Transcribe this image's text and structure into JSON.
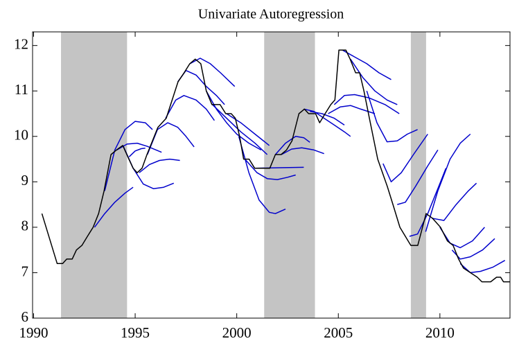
{
  "chart_data": {
    "type": "line",
    "title": "Univariate Autoregression",
    "xlim": [
      1989.95,
      2013.45
    ],
    "ylim": [
      6,
      12.3
    ],
    "xticks": [
      1990,
      1995,
      2000,
      2005,
      2010
    ],
    "yticks": [
      6,
      7,
      8,
      9,
      10,
      11,
      12
    ],
    "grid": false,
    "shaded_regions": [
      [
        1991.35,
        1994.6
      ],
      [
        2001.35,
        2003.85
      ],
      [
        2008.57,
        2009.32
      ]
    ],
    "shade_color": "#c4c4c4",
    "series": [
      {
        "color": "#000000",
        "x": [
          1990.41,
          1991.16,
          1991.43,
          1991.63,
          1991.9,
          1992.11,
          1992.38,
          1992.65,
          1992.93,
          1993.2,
          1993.47,
          1993.81,
          1994.08,
          1994.39,
          1994.69,
          1994.9,
          1995.1,
          1995.34,
          1995.58,
          1996.12,
          1996.53,
          1997.11,
          1997.41,
          1997.69,
          1997.96,
          1998.23,
          1998.5,
          1998.78,
          1999.18,
          1999.46,
          1999.73,
          1999.93,
          2000.14,
          2000.34,
          2000.61,
          2000.88,
          2001.29,
          2001.63,
          2001.9,
          2002.18,
          2002.45,
          2002.72,
          2003.06,
          2003.33,
          2003.54,
          2003.88,
          2004.08,
          2004.35,
          2004.63,
          2004.83,
          2005.03,
          2005.37,
          2005.58,
          2005.85,
          2006.05,
          2006.26,
          2006.53,
          2006.94,
          2007.41,
          2007.69,
          2008.03,
          2008.3,
          2008.57,
          2008.91,
          2009.32,
          2009.63,
          2010.03,
          2010.37,
          2010.65,
          2010.92,
          2011.16,
          2011.5,
          2011.84,
          2012.07,
          2012.5,
          2012.79,
          2012.99,
          2013.13,
          2013.45
        ],
        "values": [
          8.3,
          7.2,
          7.2,
          7.3,
          7.3,
          7.5,
          7.6,
          7.8,
          8.0,
          8.3,
          8.8,
          9.6,
          9.7,
          9.8,
          9.5,
          9.3,
          9.2,
          9.3,
          9.6,
          10.2,
          10.4,
          11.2,
          11.4,
          11.6,
          11.7,
          11.6,
          11.0,
          10.7,
          10.7,
          10.5,
          10.5,
          10.4,
          10.0,
          9.5,
          9.5,
          9.3,
          9.3,
          9.3,
          9.6,
          9.6,
          9.7,
          9.9,
          10.5,
          10.6,
          10.5,
          10.5,
          10.3,
          10.5,
          10.7,
          10.8,
          11.9,
          11.9,
          11.7,
          11.4,
          11.4,
          11.0,
          10.4,
          9.5,
          8.9,
          8.5,
          8.0,
          7.8,
          7.6,
          7.6,
          8.3,
          8.2,
          8.0,
          7.7,
          7.6,
          7.3,
          7.1,
          7.0,
          6.9,
          6.8,
          6.8,
          6.9,
          6.9,
          6.8,
          6.8
        ]
      },
      {
        "color": "#0000cc",
        "x": [
          1993.0,
          1993.5,
          1994.0,
          1994.5,
          1994.9
        ],
        "values": [
          8.0,
          8.3,
          8.55,
          8.75,
          8.88
        ]
      },
      {
        "color": "#0000cc",
        "x": [
          1993.5,
          1994.0,
          1994.5,
          1995.0,
          1995.5,
          1995.85
        ],
        "values": [
          8.8,
          9.7,
          10.15,
          10.33,
          10.3,
          10.15
        ]
      },
      {
        "color": "#0000cc",
        "x": [
          1994.4,
          1994.9,
          1995.4,
          1995.9,
          1996.4,
          1996.9
        ],
        "values": [
          9.8,
          9.3,
          8.95,
          8.85,
          8.88,
          8.97
        ]
      },
      {
        "color": "#0000cc",
        "x": [
          1994.1,
          1994.6,
          1995.1,
          1995.6,
          1996.3
        ],
        "values": [
          9.7,
          9.83,
          9.85,
          9.78,
          9.65
        ]
      },
      {
        "color": "#0000cc",
        "x": [
          1994.7,
          1995.0,
          1995.3,
          1995.5
        ],
        "values": [
          9.55,
          9.68,
          9.73,
          9.74
        ]
      },
      {
        "color": "#0000cc",
        "x": [
          1995.2,
          1995.7,
          1996.2,
          1996.7,
          1997.2
        ],
        "values": [
          9.2,
          9.38,
          9.47,
          9.5,
          9.47
        ]
      },
      {
        "color": "#0000cc",
        "x": [
          1995.6,
          1996.1,
          1996.6,
          1997.1,
          1997.5,
          1997.9
        ],
        "values": [
          9.6,
          10.15,
          10.3,
          10.2,
          10.0,
          9.77
        ]
      },
      {
        "color": "#0000cc",
        "x": [
          1996.5,
          1997.0,
          1997.4,
          1998.0,
          1998.5,
          1998.9
        ],
        "values": [
          10.4,
          10.8,
          10.9,
          10.8,
          10.6,
          10.35
        ]
      },
      {
        "color": "#0000cc",
        "x": [
          1997.1,
          1997.5,
          1998.0,
          1998.5,
          1999.0,
          1999.4
        ],
        "values": [
          11.2,
          11.45,
          11.35,
          11.1,
          10.9,
          10.7
        ]
      },
      {
        "color": "#0000cc",
        "x": [
          1997.7,
          1998.2,
          1998.7,
          1999.2,
          1999.9
        ],
        "values": [
          11.6,
          11.72,
          11.6,
          11.4,
          11.1
        ]
      },
      {
        "color": "#0000cc",
        "x": [
          1998.5,
          1999.0,
          1999.5,
          2000.0,
          2000.6,
          2001.2
        ],
        "values": [
          11.0,
          10.6,
          10.3,
          10.05,
          9.85,
          9.7
        ]
      },
      {
        "color": "#0000cc",
        "x": [
          1998.8,
          1999.5,
          2000.2,
          2000.9,
          2001.5
        ],
        "values": [
          10.7,
          10.4,
          10.1,
          9.85,
          9.6
        ]
      },
      {
        "color": "#0000cc",
        "x": [
          1999.5,
          2000.2,
          2000.9,
          2001.6
        ],
        "values": [
          10.5,
          10.3,
          10.05,
          9.8
        ]
      },
      {
        "color": "#0000cc",
        "x": [
          2000.1,
          2000.6,
          2001.1,
          2001.6,
          2001.9,
          2002.4
        ],
        "values": [
          10.0,
          9.2,
          8.6,
          8.33,
          8.3,
          8.4
        ]
      },
      {
        "color": "#0000cc",
        "x": [
          2000.4,
          2001.0,
          2001.5,
          2002.0,
          2002.5,
          2002.9
        ],
        "values": [
          9.5,
          9.2,
          9.07,
          9.05,
          9.1,
          9.15
        ]
      },
      {
        "color": "#0000cc",
        "x": [
          2000.9,
          2002.1,
          2003.3
        ],
        "values": [
          9.3,
          9.31,
          9.32
        ]
      },
      {
        "color": "#0000cc",
        "x": [
          2001.9,
          2002.4,
          2002.9,
          2003.3,
          2003.6
        ],
        "values": [
          9.6,
          9.85,
          10.0,
          9.97,
          9.87
        ]
      },
      {
        "color": "#0000cc",
        "x": [
          2002.2,
          2002.7,
          2003.2,
          2003.8,
          2004.3
        ],
        "values": [
          9.6,
          9.72,
          9.75,
          9.7,
          9.62
        ]
      },
      {
        "color": "#0000cc",
        "x": [
          2003.3,
          2003.8,
          2004.3,
          2004.8,
          2005.3,
          2005.6
        ],
        "values": [
          10.6,
          10.55,
          10.4,
          10.25,
          10.1,
          10.0
        ]
      },
      {
        "color": "#0000cc",
        "x": [
          2003.6,
          2004.2,
          2004.8,
          2005.3
        ],
        "values": [
          10.55,
          10.5,
          10.4,
          10.25
        ]
      },
      {
        "color": "#0000cc",
        "x": [
          2004.5,
          2005.1,
          2005.6,
          2006.1,
          2006.8
        ],
        "values": [
          10.5,
          10.65,
          10.68,
          10.6,
          10.5
        ]
      },
      {
        "color": "#0000cc",
        "x": [
          2004.8,
          2005.3,
          2005.8,
          2006.5,
          2007.3,
          2008.0
        ],
        "values": [
          10.7,
          10.9,
          10.92,
          10.85,
          10.7,
          10.5
        ]
      },
      {
        "color": "#0000cc",
        "x": [
          2005.2,
          2005.8,
          2006.4,
          2007.0,
          2007.6
        ],
        "values": [
          11.9,
          11.75,
          11.6,
          11.4,
          11.25
        ]
      },
      {
        "color": "#0000cc",
        "x": [
          2005.6,
          2006.2,
          2006.8,
          2007.4,
          2007.9
        ],
        "values": [
          11.7,
          11.3,
          11.0,
          10.8,
          10.7
        ]
      },
      {
        "color": "#0000cc",
        "x": [
          2006.4,
          2006.9,
          2007.4,
          2007.9,
          2008.4,
          2008.9
        ],
        "values": [
          11.0,
          10.3,
          9.88,
          9.9,
          10.05,
          10.15
        ]
      },
      {
        "color": "#0000cc",
        "x": [
          2007.2,
          2007.6,
          2008.1,
          2008.7,
          2009.4
        ],
        "values": [
          9.4,
          9.0,
          9.2,
          9.6,
          10.05
        ]
      },
      {
        "color": "#0000cc",
        "x": [
          2007.9,
          2008.3,
          2008.8,
          2009.4,
          2009.9
        ],
        "values": [
          8.5,
          8.55,
          8.9,
          9.35,
          9.7
        ]
      },
      {
        "color": "#0000cc",
        "x": [
          2008.5,
          2008.9,
          2009.4,
          2009.9,
          2010.3
        ],
        "values": [
          7.8,
          7.85,
          8.3,
          8.85,
          9.3
        ]
      },
      {
        "color": "#0000cc",
        "x": [
          2009.3,
          2009.9,
          2010.5,
          2011.0,
          2011.5
        ],
        "values": [
          7.9,
          8.8,
          9.5,
          9.85,
          10.05
        ]
      },
      {
        "color": "#0000cc",
        "x": [
          2009.6,
          2010.2,
          2010.8,
          2011.4,
          2011.8
        ],
        "values": [
          8.2,
          8.15,
          8.5,
          8.8,
          8.97
        ]
      },
      {
        "color": "#0000cc",
        "x": [
          2010.0,
          2010.5,
          2011.0,
          2011.6,
          2012.2
        ],
        "values": [
          8.0,
          7.65,
          7.55,
          7.7,
          8.0
        ]
      },
      {
        "color": "#0000cc",
        "x": [
          2010.6,
          2011.0,
          2011.5,
          2012.1,
          2012.7
        ],
        "values": [
          7.5,
          7.3,
          7.35,
          7.5,
          7.75
        ]
      },
      {
        "color": "#0000cc",
        "x": [
          2011.0,
          2011.5,
          2012.0,
          2012.6,
          2013.2
        ],
        "values": [
          7.2,
          7.0,
          7.03,
          7.12,
          7.27
        ]
      }
    ]
  }
}
